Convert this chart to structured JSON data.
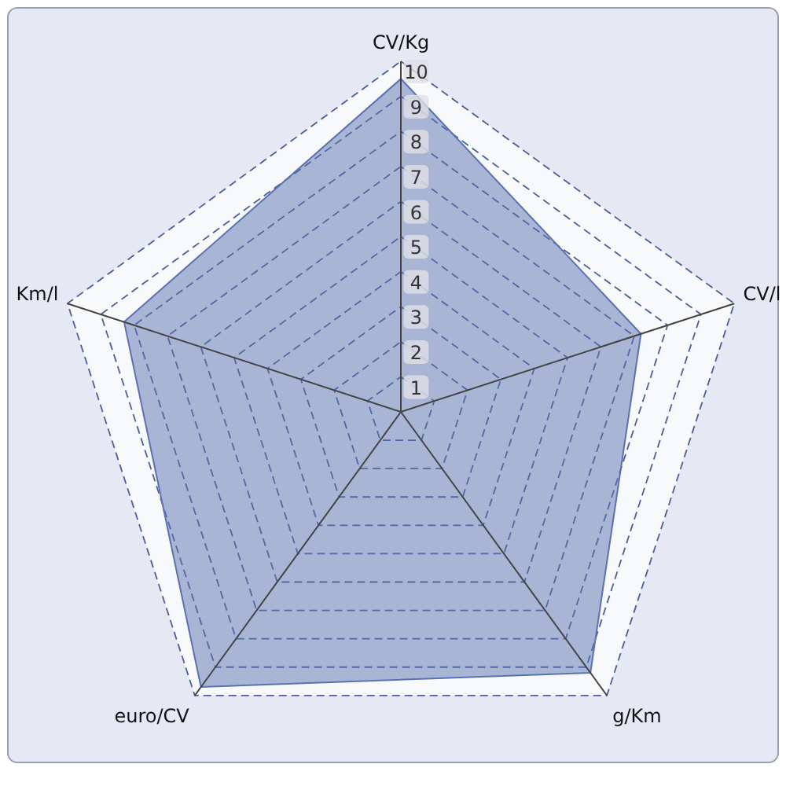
{
  "chart_data": {
    "type": "radar",
    "categories": [
      "CV/Kg",
      "CV/l",
      "g/Km",
      "euro/CV",
      "Km/l"
    ],
    "series": [
      {
        "color": "#5a72b0",
        "values": [
          9.5,
          7.2,
          9.2,
          9.7,
          8.3
        ]
      }
    ],
    "ylim": [
      0,
      10
    ],
    "yticks": [
      1,
      2,
      3,
      4,
      5,
      6,
      7,
      8,
      9,
      10
    ],
    "grid": true
  }
}
